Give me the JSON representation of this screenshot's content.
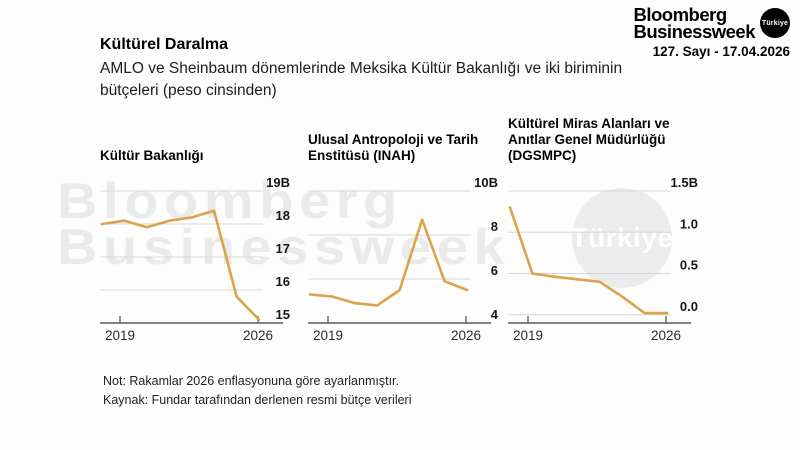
{
  "header": {
    "logo_line1": "Bloomberg",
    "logo_line2": "Businessweek",
    "logo_badge": "Türkiye",
    "issue": "127. Sayı - 17.04.2026"
  },
  "headline": {
    "title": "Kültürel Daralma",
    "subtitle": "AMLO ve Sheinbaum dönemlerinde Meksika Kültür Bakanlığı ve iki biriminin bütçeleri (peso cinsinden)"
  },
  "watermark": {
    "line1": "Bloomberg",
    "line2": "Businessweek",
    "badge": "Türkiye"
  },
  "notes": [
    "Not: Rakamlar 2026 enflasyonuna göre ayarlanmıştır.",
    "Kaynak: Fundar tarafından derlenen resmi bütçe verileri"
  ],
  "colors": {
    "line": "#d9a44c",
    "grid": "#d6d6d6",
    "axis": "#5a5a5a",
    "watermark": "#eaeaea",
    "badge_bg": "#000000",
    "badge_circle": "#ececec"
  },
  "chart_data": [
    {
      "type": "line",
      "title": "Kültür Bakanlığı",
      "x": [
        2019,
        2020,
        2021,
        2022,
        2023,
        2024,
        2025,
        2026
      ],
      "values": [
        18.0,
        18.1,
        17.9,
        18.1,
        18.2,
        18.4,
        15.8,
        15.1
      ],
      "ylim": [
        15,
        19
      ],
      "yticks": [
        {
          "value": 19,
          "label": "19B"
        },
        {
          "value": 18,
          "label": "18"
        },
        {
          "value": 17,
          "label": "17"
        },
        {
          "value": 16,
          "label": "16"
        },
        {
          "value": 15,
          "label": "15"
        }
      ],
      "xticks": [
        {
          "value": 2019,
          "label": "2019"
        },
        {
          "value": 2026,
          "label": "2026"
        }
      ],
      "grid": true,
      "legend": "none"
    },
    {
      "type": "line",
      "title": "Ulusal Antropoloji ve Tarih Enstitüsü (INAH)",
      "x": [
        2019,
        2020,
        2021,
        2022,
        2023,
        2024,
        2025,
        2026
      ],
      "values": [
        5.3,
        5.2,
        4.9,
        4.8,
        5.5,
        8.7,
        5.9,
        5.5
      ],
      "ylim": [
        4,
        10
      ],
      "yticks": [
        {
          "value": 10,
          "label": "10B"
        },
        {
          "value": 8,
          "label": "8"
        },
        {
          "value": 6,
          "label": "6"
        },
        {
          "value": 4,
          "label": "4"
        }
      ],
      "xticks": [
        {
          "value": 2019,
          "label": "2019"
        },
        {
          "value": 2026,
          "label": "2026"
        }
      ],
      "grid": true,
      "legend": "none"
    },
    {
      "type": "line",
      "title": "Kültürel Miras Alanları ve Anıtlar Genel Müdürlüğü (DGSMPC)",
      "x": [
        2019,
        2020,
        2021,
        2022,
        2023,
        2024,
        2025,
        2026
      ],
      "values": [
        1.3,
        0.5,
        0.46,
        0.43,
        0.4,
        0.22,
        0.02,
        0.02
      ],
      "ylim": [
        -0.1,
        1.5
      ],
      "yticks": [
        {
          "value": 1.5,
          "label": "1.5B"
        },
        {
          "value": 1.0,
          "label": "1.0"
        },
        {
          "value": 0.5,
          "label": "0.5"
        },
        {
          "value": 0.0,
          "label": "0.0"
        }
      ],
      "xticks": [
        {
          "value": 2019,
          "label": "2019"
        },
        {
          "value": 2026,
          "label": "2026"
        }
      ],
      "grid": true,
      "legend": "none"
    }
  ]
}
